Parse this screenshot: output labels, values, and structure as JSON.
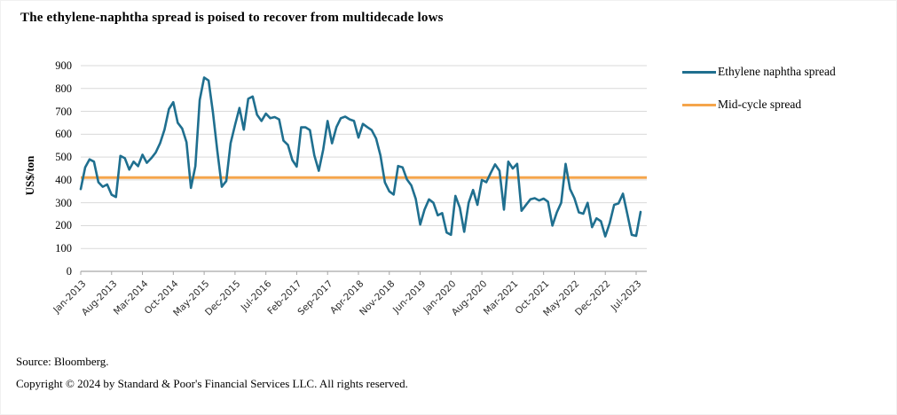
{
  "title": "The ethylene-naphtha spread is poised to recover from multidecade lows",
  "y_axis_title": "US$/ton",
  "legend": [
    {
      "label": "Ethylene naphtha spread",
      "color": "#1f6f8f"
    },
    {
      "label": "Mid-cycle spread",
      "color": "#f5a54b"
    }
  ],
  "footer": {
    "source": "Source: Bloomberg.",
    "copyright": "Copyright © 2024 by Standard & Poor's Financial Services LLC. All rights reserved."
  },
  "colors": {
    "series_line": "#1f6f8f",
    "mid_cycle_line": "#f5a54b",
    "gridline": "#d9d9d9",
    "axis_line": "#a6a6a6",
    "text": "#000000"
  },
  "chart_data": {
    "type": "line",
    "title": "The ethylene-naphtha spread is poised to recover from multidecade lows",
    "xlabel": "",
    "ylabel": "US$/ton",
    "ylim": [
      0,
      900
    ],
    "ytick_step": 100,
    "grid": "horizontal",
    "legend_position": "right",
    "x_unit": "monthly",
    "x_start": "Jan-2013",
    "x_end": "Aug-2023",
    "x_tick_month_step": 7,
    "x_tick_labels": [
      "Jan-2013",
      "Aug-2013",
      "Mar-2014",
      "Oct-2014",
      "May-2015",
      "Dec-2015",
      "Jul-2016",
      "Feb-2017",
      "Sep-2017",
      "Apr-2018",
      "Nov-2018",
      "Jun-2019",
      "Jan-2020",
      "Aug-2020",
      "Mar-2021",
      "Oct-2021",
      "May-2022",
      "Dec-2022",
      "Jul-2023"
    ],
    "series": [
      {
        "name": "Ethylene naphtha spread",
        "color": "#1f6f8f",
        "values": [
          360,
          455,
          490,
          480,
          390,
          370,
          380,
          335,
          325,
          505,
          495,
          445,
          480,
          460,
          510,
          475,
          495,
          520,
          560,
          620,
          710,
          740,
          650,
          625,
          565,
          365,
          460,
          750,
          848,
          835,
          695,
          525,
          370,
          395,
          560,
          640,
          715,
          620,
          755,
          765,
          685,
          658,
          690,
          670,
          675,
          665,
          572,
          553,
          487,
          458,
          630,
          630,
          618,
          507,
          440,
          533,
          658,
          560,
          631,
          670,
          677,
          665,
          658,
          585,
          645,
          631,
          618,
          581,
          507,
          389,
          350,
          336,
          461,
          455,
          402,
          376,
          317,
          205,
          270,
          315,
          300,
          245,
          255,
          170,
          160,
          330,
          278,
          173,
          300,
          356,
          291,
          400,
          390,
          430,
          468,
          440,
          270,
          480,
          450,
          470,
          265,
          290,
          315,
          320,
          310,
          318,
          305,
          200,
          258,
          300,
          470,
          360,
          320,
          258,
          252,
          300,
          193,
          232,
          219,
          153,
          211,
          291,
          297,
          340,
          250,
          160,
          155,
          260
        ]
      },
      {
        "name": "Mid-cycle spread",
        "color": "#f5a54b",
        "constant_value": 410
      }
    ]
  }
}
